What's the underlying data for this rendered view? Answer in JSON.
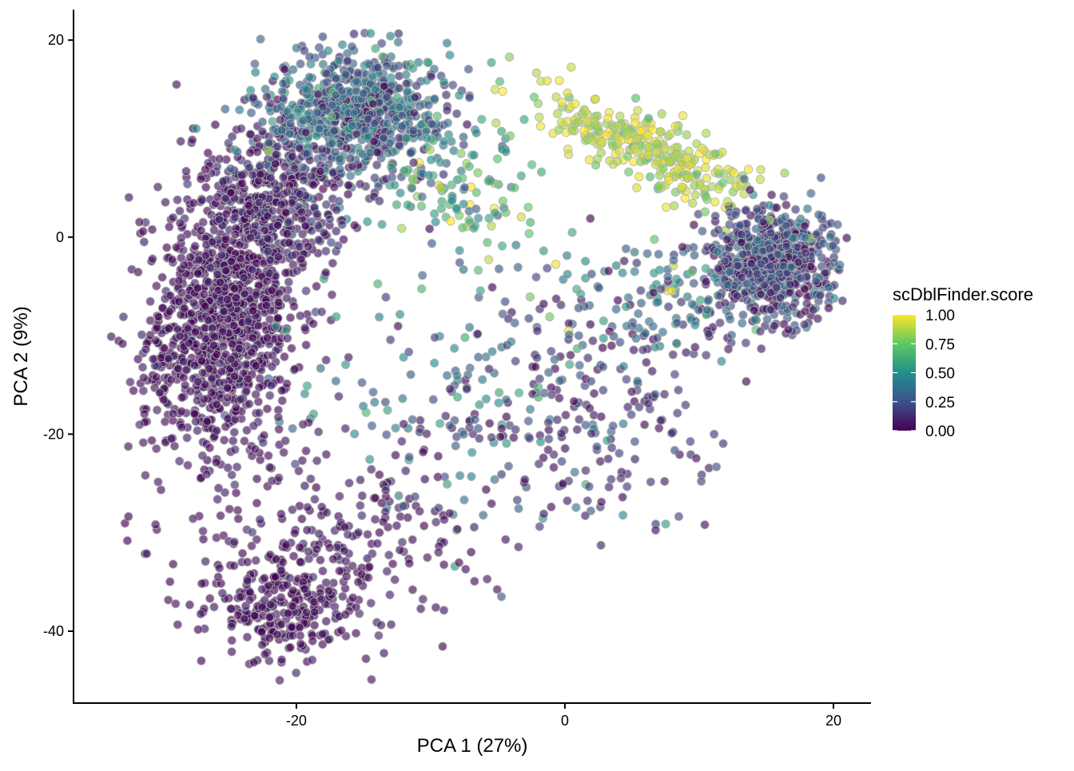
{
  "chart_data": {
    "type": "scatter",
    "title": "",
    "xlabel": "PCA 1 (27%)",
    "ylabel": "PCA 2 (9%)",
    "xlim": [
      -36.6,
      22.8
    ],
    "ylim": [
      -47.3,
      23.1
    ],
    "xticks": [
      {
        "value": -20,
        "label": "-20"
      },
      {
        "value": 0,
        "label": "0"
      },
      {
        "value": 20,
        "label": "20"
      }
    ],
    "yticks": [
      {
        "value": 20,
        "label": "20"
      },
      {
        "value": 0,
        "label": "0"
      },
      {
        "value": -20,
        "label": "-20"
      },
      {
        "value": -40,
        "label": "-40"
      }
    ],
    "grid": false,
    "legend": {
      "title": "scDblFinder.score",
      "placement": "right",
      "ticks": [
        {
          "value": 1.0,
          "label": "1.00"
        },
        {
          "value": 0.75,
          "label": "0.75"
        },
        {
          "value": 0.5,
          "label": "0.50"
        },
        {
          "value": 0.25,
          "label": "0.25"
        },
        {
          "value": 0.0,
          "label": "0.00"
        }
      ],
      "colormap": [
        "#440154",
        "#3b528b",
        "#21908c",
        "#5dc863",
        "#fde725"
      ]
    },
    "point_groups_note": "approximate point clouds; each group lists center, spread (data units), count, mean score",
    "point_groups": [
      {
        "cx": -25,
        "cy": -7,
        "sx": 2.6,
        "sy": 7.5,
        "n": 1000,
        "score": 0.04,
        "score_sd": 0.04
      },
      {
        "cx": -21,
        "cy": 4,
        "sx": 2.5,
        "sy": 4,
        "n": 350,
        "score": 0.08,
        "score_sd": 0.06
      },
      {
        "cx": -15.5,
        "cy": 12.5,
        "sx": 3.5,
        "sy": 3.2,
        "n": 750,
        "score": 0.3,
        "score_sd": 0.15
      },
      {
        "cx": 15.5,
        "cy": -2.5,
        "sx": 2.4,
        "sy": 2.8,
        "n": 650,
        "score": 0.18,
        "score_sd": 0.12
      },
      {
        "cx": 6,
        "cy": 9,
        "sx": 4,
        "sy": 2,
        "n": 300,
        "score": 0.9,
        "score_sd": 0.08,
        "slope": -0.6
      },
      {
        "cx": -21,
        "cy": -38,
        "sx": 2.5,
        "sy": 2.5,
        "n": 220,
        "score": 0.03,
        "score_sd": 0.03
      },
      {
        "cx": -18,
        "cy": -31,
        "sx": 6,
        "sy": 5,
        "n": 280,
        "score": 0.05,
        "score_sd": 0.04
      },
      {
        "cx": -29,
        "cy": -14,
        "sx": 2,
        "sy": 5,
        "n": 150,
        "score": 0.05,
        "score_sd": 0.04
      },
      {
        "cx": -6,
        "cy": -16,
        "sx": 7,
        "sy": 7,
        "n": 220,
        "score": 0.3,
        "score_sd": 0.2
      },
      {
        "cx": 3,
        "cy": -17,
        "sx": 5,
        "sy": 7,
        "n": 150,
        "score": 0.1,
        "score_sd": 0.08
      },
      {
        "cx": -8,
        "cy": 5,
        "sx": 3,
        "sy": 4,
        "n": 130,
        "score": 0.6,
        "score_sd": 0.2
      },
      {
        "cx": 8,
        "cy": -6,
        "sx": 4,
        "sy": 3,
        "n": 120,
        "score": 0.35,
        "score_sd": 0.2
      }
    ]
  }
}
